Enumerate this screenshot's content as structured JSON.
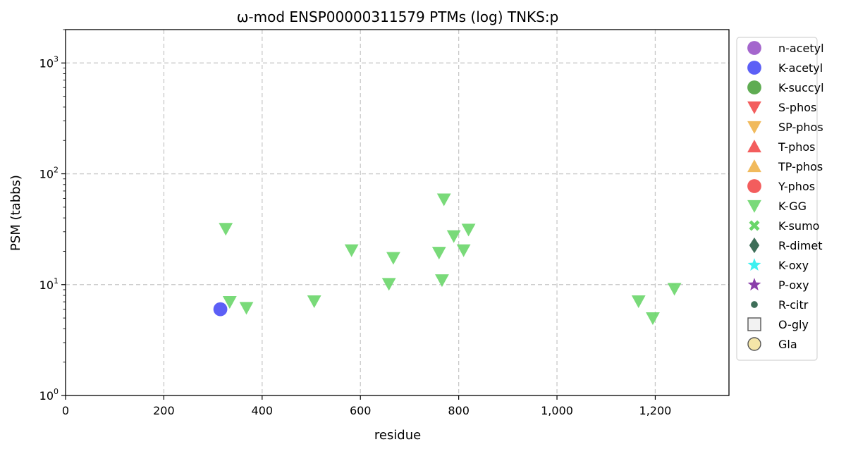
{
  "chart_data": {
    "type": "scatter",
    "title": "ω-mod ENSP00000311579 PTMs (log) TNKS:p",
    "xlabel": "residue",
    "ylabel": "PSM (tabbs)",
    "xlim": [
      0,
      1350
    ],
    "ylim": [
      1,
      2000
    ],
    "yscale": "log",
    "grid": true,
    "legend_position": "outside-right",
    "x_ticks": [
      {
        "value": 0,
        "label": "0"
      },
      {
        "value": 200,
        "label": "200"
      },
      {
        "value": 400,
        "label": "400"
      },
      {
        "value": 600,
        "label": "600"
      },
      {
        "value": 800,
        "label": "800"
      },
      {
        "value": 1000,
        "label": "1,000"
      },
      {
        "value": 1200,
        "label": "1,200"
      }
    ],
    "y_ticks": [
      {
        "value": 1,
        "base": "10",
        "exp": "0"
      },
      {
        "value": 10,
        "base": "10",
        "exp": "1"
      },
      {
        "value": 100,
        "base": "10",
        "exp": "2"
      },
      {
        "value": 1000,
        "base": "10",
        "exp": "3"
      }
    ],
    "series": [
      {
        "name": "n-acetyl",
        "marker": "circle",
        "color": "#9a55c8",
        "points": []
      },
      {
        "name": "K-acetyl",
        "marker": "circle",
        "color": "#4a4ef5",
        "points": [
          [
            315,
            6
          ]
        ]
      },
      {
        "name": "K-succyl",
        "marker": "circle",
        "color": "#4ea33f",
        "points": []
      },
      {
        "name": "S-phos",
        "marker": "triangle-down",
        "color": "#f24b4b",
        "points": []
      },
      {
        "name": "SP-phos",
        "marker": "triangle-down",
        "color": "#f0b24a",
        "points": []
      },
      {
        "name": "T-phos",
        "marker": "triangle-up",
        "color": "#f24b4b",
        "points": []
      },
      {
        "name": "TP-phos",
        "marker": "triangle-up",
        "color": "#f0b24a",
        "points": []
      },
      {
        "name": "Y-phos",
        "marker": "circle",
        "color": "#f24b4b",
        "points": []
      },
      {
        "name": "K-GG",
        "marker": "triangle-down",
        "color": "#6ad66a",
        "points": [
          [
            326,
            32
          ],
          [
            334,
            7
          ],
          [
            368,
            6.2
          ],
          [
            506,
            7.1
          ],
          [
            582,
            20.5
          ],
          [
            658,
            10.2
          ],
          [
            667,
            17.5
          ],
          [
            760,
            19.5
          ],
          [
            766,
            11
          ],
          [
            770,
            59
          ],
          [
            790,
            27.5
          ],
          [
            810,
            20.5
          ],
          [
            820,
            31.5
          ],
          [
            1166,
            7.1
          ],
          [
            1195,
            5
          ],
          [
            1239,
            9.2
          ]
        ]
      },
      {
        "name": "K-sumo",
        "marker": "x",
        "color": "#6ad66a",
        "points": []
      },
      {
        "name": "R-dimet",
        "marker": "diamond",
        "color": "#3e6e58",
        "points": []
      },
      {
        "name": "K-oxy",
        "marker": "star",
        "color": "#3ef0f0",
        "points": []
      },
      {
        "name": "P-oxy",
        "marker": "star",
        "color": "#8a3eaa",
        "points": []
      },
      {
        "name": "R-citr",
        "marker": "small-circle",
        "color": "#3e6e58",
        "points": []
      },
      {
        "name": "O-gly",
        "marker": "square-open",
        "color": "#f2f2f2",
        "points": []
      },
      {
        "name": "Gla",
        "marker": "circle-open",
        "color": "#f5e6a8",
        "points": []
      }
    ]
  }
}
